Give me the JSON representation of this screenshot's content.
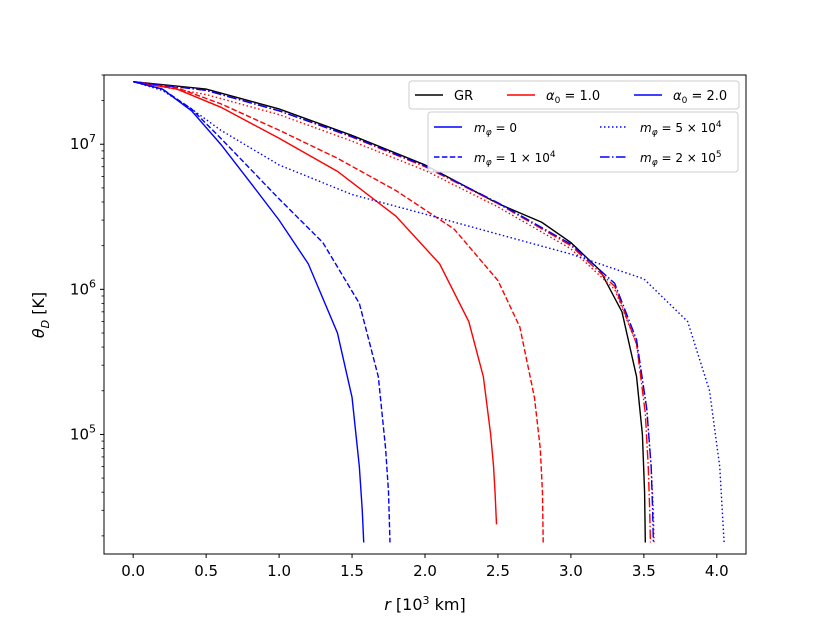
{
  "chart_data": {
    "type": "line",
    "xlabel": "r [10³ km]",
    "ylabel": "θD [K]",
    "yscale": "log",
    "xlim": [
      -0.2,
      4.2
    ],
    "ylim": [
      15000,
      30000000
    ],
    "xticks": [
      0.0,
      0.5,
      1.0,
      1.5,
      2.0,
      2.5,
      3.0,
      3.5,
      4.0
    ],
    "xtick_labels": [
      "0.0",
      "0.5",
      "1.0",
      "1.5",
      "2.0",
      "2.5",
      "3.0",
      "3.5",
      "4.0"
    ],
    "yticks": [
      {
        "value": 100000,
        "base": "10",
        "exp": "5"
      },
      {
        "value": 1000000,
        "base": "10",
        "exp": "6"
      },
      {
        "value": 10000000,
        "base": "10",
        "exp": "7"
      }
    ],
    "colors": {
      "GR": "#000000",
      "alpha1": "#ff0000",
      "alpha2": "#0000ff"
    },
    "legend_color": {
      "location": "top-right",
      "entries": [
        {
          "label": "GR",
          "color": "#000000"
        },
        {
          "label": "α₀ = 1.0",
          "color": "#ff0000"
        },
        {
          "label": "α₀ = 2.0",
          "color": "#0000ff"
        }
      ]
    },
    "legend_style": {
      "location": "upper-right",
      "entries": [
        {
          "label": "mφ = 0",
          "dash": "solid"
        },
        {
          "label": "mφ = 5 × 10⁴",
          "dash": "dotted"
        },
        {
          "label": "mφ = 1 × 10⁴",
          "dash": "dashed"
        },
        {
          "label": "mφ = 2 × 10⁵",
          "dash": "dashdot"
        }
      ]
    },
    "series": [
      {
        "group": "GR",
        "color": "#000000",
        "dash": "solid",
        "x": [
          0.0,
          0.5,
          1.0,
          1.5,
          2.0,
          2.5,
          2.8,
          3.0,
          3.2,
          3.35,
          3.45,
          3.49,
          3.505,
          3.51
        ],
        "y": [
          27000000,
          24000000,
          17500000,
          11500000,
          7200000,
          3900000,
          2900000,
          2100000,
          1350000,
          700000,
          250000,
          100000,
          40000,
          18000
        ]
      },
      {
        "group": "α₀ = 1.0",
        "color": "#ff0000",
        "dash": "solid",
        "x": [
          0.0,
          0.3,
          0.6,
          1.0,
          1.4,
          1.8,
          2.1,
          2.3,
          2.4,
          2.45,
          2.47,
          2.48,
          2.49
        ],
        "y": [
          27000000,
          24000000,
          18000000,
          11000000,
          6500000,
          3200000,
          1500000,
          600000,
          250000,
          100000,
          60000,
          40000,
          24000
        ]
      },
      {
        "group": "α₀ = 1.0",
        "color": "#ff0000",
        "dash": "dashed",
        "x": [
          0.0,
          0.3,
          0.6,
          1.0,
          1.4,
          1.8,
          2.2,
          2.5,
          2.65,
          2.75,
          2.79,
          2.805,
          2.81
        ],
        "y": [
          27000000,
          24500000,
          19000000,
          12500000,
          8000000,
          4800000,
          2600000,
          1150000,
          550000,
          180000,
          80000,
          40000,
          18000
        ]
      },
      {
        "group": "α₀ = 1.0",
        "color": "#ff0000",
        "dash": "dotted",
        "x": [
          0.0,
          0.5,
          1.0,
          1.5,
          2.0,
          2.5,
          3.0,
          3.3,
          3.45,
          3.52,
          3.55,
          3.565,
          3.57
        ],
        "y": [
          27000000,
          22000000,
          16000000,
          10500000,
          6600000,
          3700000,
          1900000,
          1000000,
          420000,
          150000,
          60000,
          30000,
          18000
        ]
      },
      {
        "group": "α₀ = 1.0",
        "color": "#ff0000",
        "dash": "dashdot",
        "x": [
          0.0,
          0.5,
          1.0,
          1.5,
          2.0,
          2.5,
          3.0,
          3.3,
          3.45,
          3.51,
          3.53,
          3.54,
          3.545
        ],
        "y": [
          27000000,
          23500000,
          17000000,
          11200000,
          7000000,
          3900000,
          2000000,
          1050000,
          420000,
          140000,
          60000,
          30000,
          18000
        ]
      },
      {
        "group": "α₀ = 2.0",
        "color": "#0000ff",
        "dash": "solid",
        "x": [
          0.0,
          0.2,
          0.4,
          0.6,
          0.8,
          1.0,
          1.2,
          1.4,
          1.5,
          1.55,
          1.57,
          1.58
        ],
        "y": [
          27000000,
          24000000,
          17000000,
          10000000,
          5500000,
          3000000,
          1500000,
          500000,
          180000,
          60000,
          30000,
          18000
        ]
      },
      {
        "group": "α₀ = 2.0",
        "color": "#0000ff",
        "dash": "dashed",
        "x": [
          0.0,
          0.2,
          0.4,
          0.6,
          0.8,
          1.0,
          1.3,
          1.55,
          1.68,
          1.73,
          1.75,
          1.76
        ],
        "y": [
          27000000,
          24000000,
          17500000,
          11000000,
          6800000,
          4200000,
          2100000,
          800000,
          250000,
          80000,
          40000,
          18000
        ]
      },
      {
        "group": "α₀ = 2.0",
        "color": "#0000ff",
        "dash": "dotted",
        "x": [
          0.0,
          0.2,
          0.4,
          0.6,
          1.0,
          1.5,
          2.0,
          2.5,
          3.0,
          3.5,
          3.8,
          3.95,
          4.02,
          4.05
        ],
        "y": [
          27000000,
          23500000,
          17500000,
          12500000,
          7200000,
          4500000,
          3300000,
          2400000,
          1750000,
          1180000,
          600000,
          200000,
          60000,
          18000
        ]
      },
      {
        "group": "α₀ = 2.0",
        "color": "#0000ff",
        "dash": "dashdot",
        "x": [
          0.0,
          0.5,
          1.0,
          1.5,
          2.0,
          2.5,
          3.0,
          3.3,
          3.45,
          3.52,
          3.55,
          3.56,
          3.565
        ],
        "y": [
          27000000,
          23500000,
          17000000,
          11300000,
          7100000,
          3950000,
          2050000,
          1100000,
          450000,
          150000,
          60000,
          30000,
          18000
        ]
      }
    ]
  }
}
